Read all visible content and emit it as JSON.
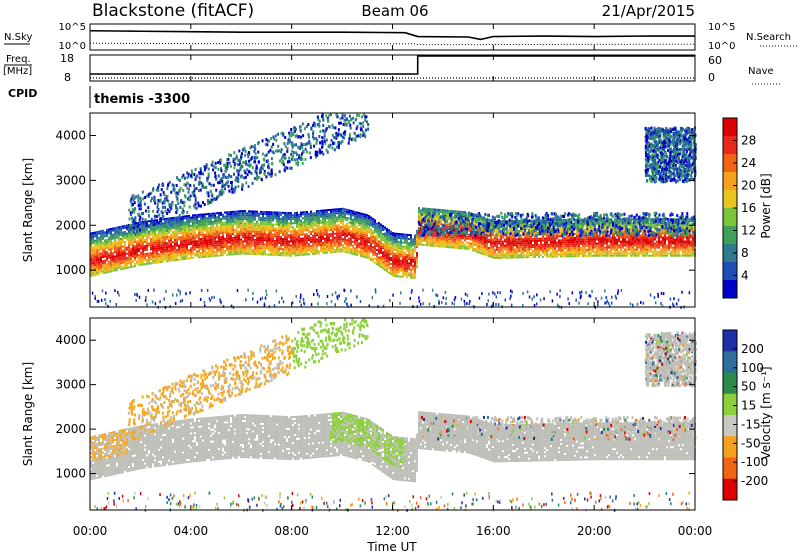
{
  "header": {
    "site": "Blackstone (fitACF)",
    "beam": "Beam 06",
    "date": "21/Apr/2015"
  },
  "noise_panel": {
    "left_label": "N.Sky",
    "right_label": "N.Search",
    "left_ticks": [
      "10^5",
      "10^0"
    ],
    "right_ticks": [
      "10^5",
      "10^0"
    ],
    "sky_trace": [
      [
        0,
        3.8
      ],
      [
        2,
        3.7
      ],
      [
        4,
        3.6
      ],
      [
        6,
        3.5
      ],
      [
        8,
        3.5
      ],
      [
        10,
        3.5
      ],
      [
        12.5,
        3.4
      ],
      [
        13,
        2.6
      ],
      [
        15,
        2.5
      ],
      [
        15.5,
        2.0
      ],
      [
        16,
        2.6
      ],
      [
        18,
        2.7
      ],
      [
        20,
        2.6
      ],
      [
        22,
        2.7
      ],
      [
        24,
        2.7
      ]
    ],
    "search_trace": [
      [
        0,
        1.2
      ],
      [
        6,
        1.1
      ],
      [
        12.9,
        1.1
      ],
      [
        13,
        0.9
      ],
      [
        24,
        1.0
      ]
    ]
  },
  "freq_panel": {
    "left_label": "Freq.",
    "left_unit": "[MHz]",
    "right_label": "Nave",
    "left_ticks": [
      "18",
      "8"
    ],
    "right_ticks": [
      "60",
      "0"
    ],
    "freq_trace": [
      [
        0,
        10.5
      ],
      [
        13,
        10.5
      ],
      [
        13,
        18
      ],
      [
        24,
        18
      ]
    ],
    "nave_trace": [
      [
        0,
        0
      ],
      [
        24,
        0
      ]
    ]
  },
  "cpid": {
    "label": "CPID",
    "value": "themis -3300"
  },
  "chart_data": [
    {
      "type": "heatmap",
      "name": "power",
      "ylabel": "Slant Range [km]",
      "xlabel": "Time UT",
      "x_ticks": [
        "00:00",
        "04:00",
        "08:00",
        "12:00",
        "16:00",
        "20:00",
        "00:00"
      ],
      "x_range_hours": [
        0,
        24
      ],
      "ylim": [
        180,
        4500
      ],
      "y_ticks": [
        1000,
        2000,
        3000,
        4000
      ],
      "colorbar_label": "Power [dB]",
      "colorbar_ticks": [
        4,
        8,
        12,
        16,
        20,
        24,
        28
      ],
      "colorbar_range": [
        0,
        30
      ],
      "colors": [
        "#0000c8",
        "#1e4fb4",
        "#2f7a8c",
        "#3fa05a",
        "#7cc53a",
        "#e6c51e",
        "#f5a01e",
        "#f06414",
        "#e8281e",
        "#dc0000"
      ],
      "ground_band_ranges_km": [
        [
          0,
          1100
        ],
        [
          2,
          1350
        ],
        [
          4,
          1500
        ],
        [
          6,
          1600
        ],
        [
          8,
          1550
        ],
        [
          10,
          1650
        ],
        [
          11,
          1500
        ],
        [
          12,
          1100
        ],
        [
          12.9,
          1050
        ],
        [
          13,
          1800
        ],
        [
          15,
          1700
        ],
        [
          16,
          1500
        ],
        [
          20,
          1550
        ],
        [
          24,
          1550
        ]
      ],
      "scatter_regions": [
        {
          "t0": 1.5,
          "t1": 11,
          "r0": 2500,
          "r1": 4500,
          "level": "weak"
        },
        {
          "t0": 13,
          "t1": 24,
          "r0": 1800,
          "r1": 2300,
          "level": "weak"
        },
        {
          "t0": 22,
          "t1": 24,
          "r0": 3000,
          "r1": 4200,
          "level": "weak"
        }
      ]
    },
    {
      "type": "heatmap",
      "name": "velocity",
      "ylabel": "Slant Range [km]",
      "xlabel": "Time UT",
      "x_ticks": [
        "00:00",
        "04:00",
        "08:00",
        "12:00",
        "16:00",
        "20:00",
        "00:00"
      ],
      "x_range_hours": [
        0,
        24
      ],
      "ylim": [
        180,
        4500
      ],
      "y_ticks": [
        1000,
        2000,
        3000,
        4000
      ],
      "colorbar_label": "Velocity [m s⁻¹]",
      "colorbar_ticks": [
        200,
        100,
        50,
        15,
        -15,
        -50,
        -100,
        -200
      ],
      "colors": [
        "#1e2fa8",
        "#2e6e9c",
        "#2c8a4a",
        "#8cd03c",
        "#c8c8c0",
        "#f5a01e",
        "#f06414",
        "#dc0000"
      ],
      "ground_scatter_color": "#bebeb8",
      "ionospheric_region_colors": {
        "early_negative": "#f5a81e",
        "late_positive": "#8cd03c"
      }
    }
  ],
  "axis_title": "Time UT"
}
